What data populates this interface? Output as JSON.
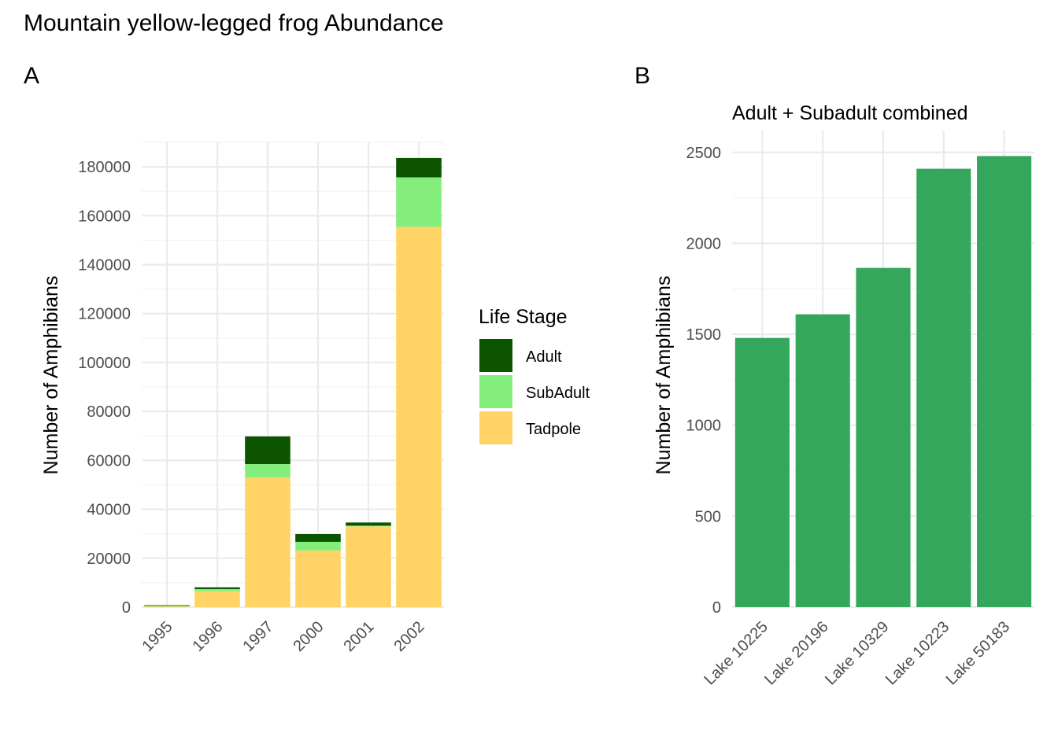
{
  "title": "Mountain yellow-legged frog Abundance",
  "chart_data": [
    {
      "tag": "A",
      "type": "bar",
      "stacked": true,
      "categories": [
        "1995",
        "1996",
        "1997",
        "2000",
        "2001",
        "2002"
      ],
      "series": [
        {
          "name": "Tadpole",
          "color": "#FFD365",
          "values": [
            300,
            6500,
            53000,
            23200,
            33000,
            155500
          ]
        },
        {
          "name": "SubAdult",
          "color": "#83EE7B",
          "values": [
            250,
            900,
            5500,
            3500,
            300,
            20200
          ]
        },
        {
          "name": "Adult",
          "color": "#0C5400",
          "values": [
            250,
            700,
            11300,
            3200,
            1300,
            7900
          ]
        }
      ],
      "ylabel": "Number of Amphibians",
      "xlabel": "",
      "ylim": [
        0,
        190000
      ],
      "yticks": [
        "0",
        "20000",
        "40000",
        "60000",
        "80000",
        "100000",
        "120000",
        "140000",
        "160000",
        "180000"
      ],
      "x_tick_rotation": -45,
      "grid": true,
      "legend": {
        "title": "Life Stage",
        "position": "right",
        "items": [
          "Adult",
          "SubAdult",
          "Tadpole"
        ]
      }
    },
    {
      "tag": "B",
      "type": "bar",
      "title": "Adult + Subadult combined",
      "categories": [
        "Lake 10225",
        "Lake 20196",
        "Lake 10329",
        "Lake 10223",
        "Lake 50183"
      ],
      "values": [
        1480,
        1610,
        1865,
        2410,
        2480
      ],
      "color": "#35A75C",
      "ylabel": "Number of Amphibians",
      "xlabel": "",
      "ylim": [
        0,
        2620
      ],
      "yticks": [
        "0",
        "500",
        "1000",
        "1500",
        "2000",
        "2500"
      ],
      "x_tick_rotation": -45,
      "grid": true
    }
  ]
}
